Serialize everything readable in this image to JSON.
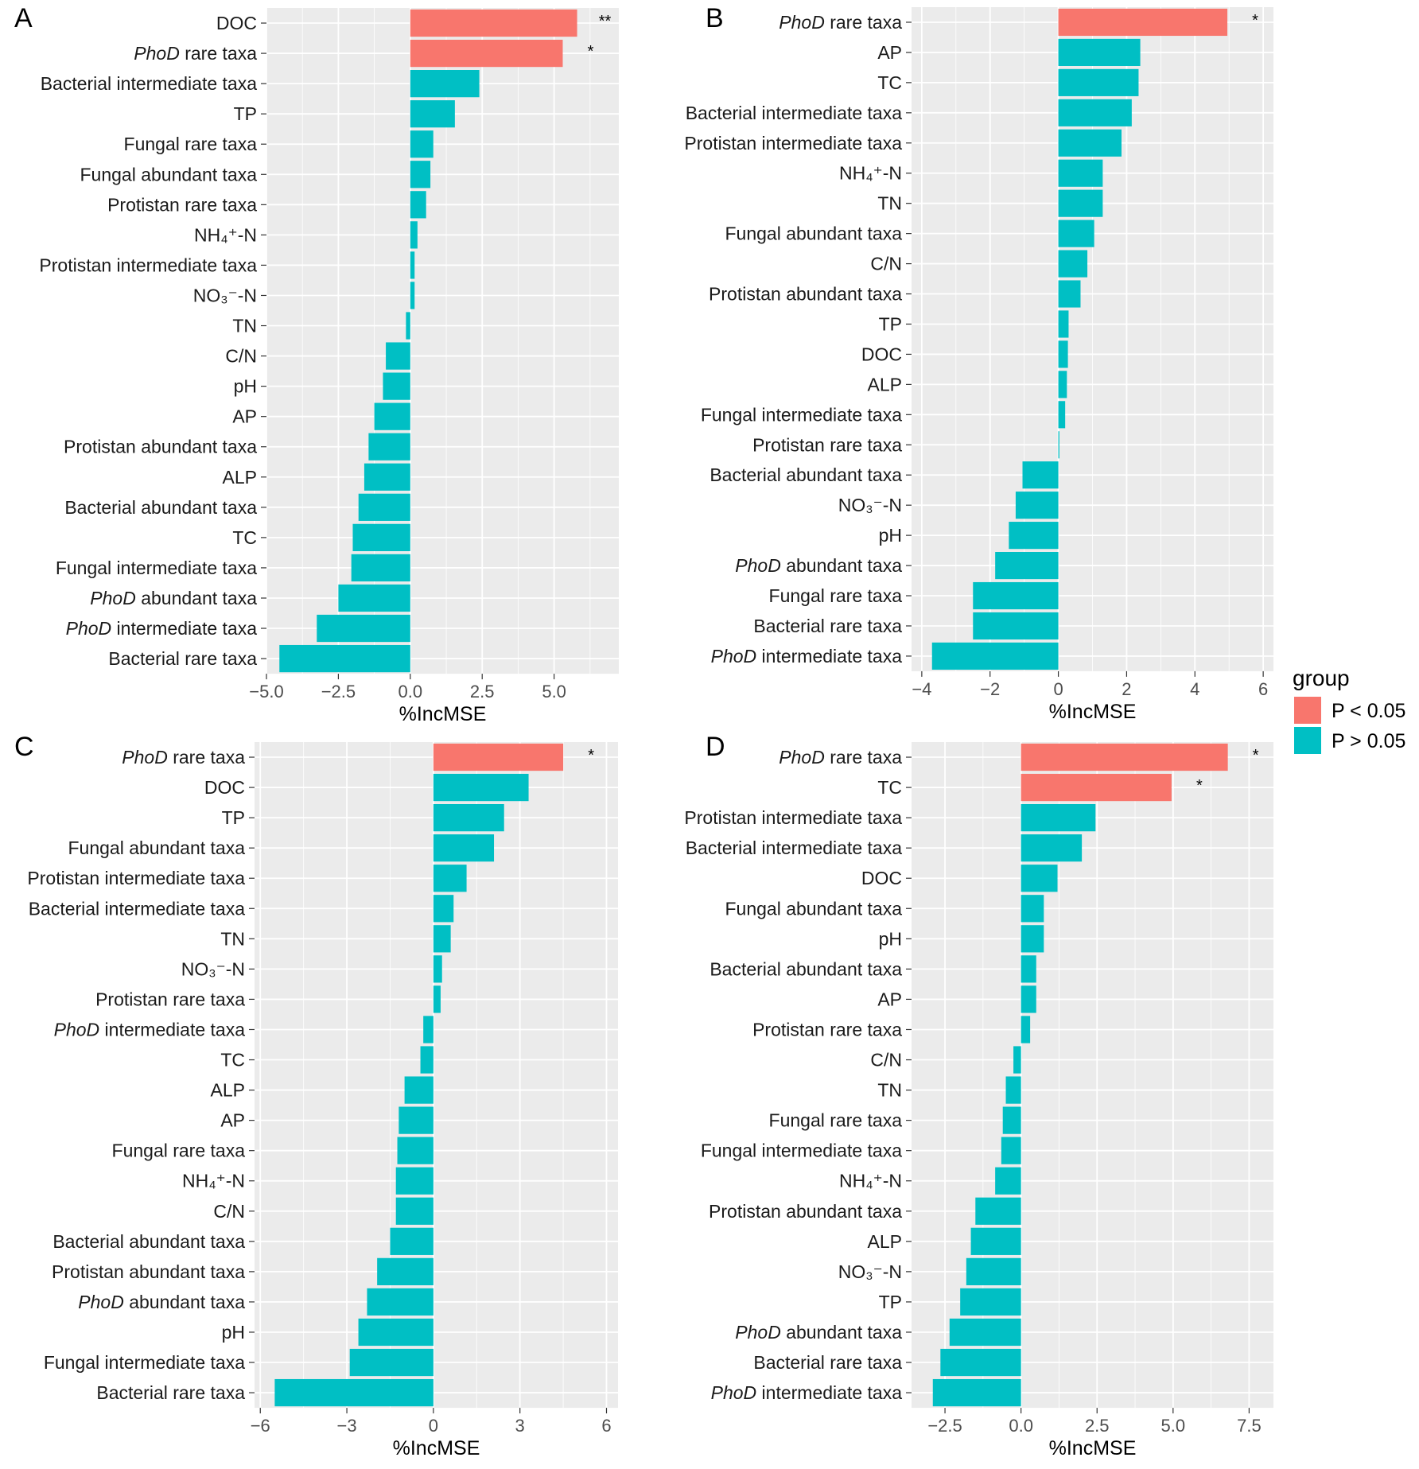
{
  "colors": {
    "significant": "#F8766D",
    "nonsignificant": "#00BFC4",
    "panel_bg": "#EBEBEB",
    "grid": "#FFFFFF"
  },
  "legend": {
    "title": "group",
    "entries": [
      {
        "label": "P < 0.05",
        "color": "#F8766D"
      },
      {
        "label": "P > 0.05",
        "color": "#00BFC4"
      }
    ]
  },
  "chart_data": [
    {
      "panel": "A",
      "type": "bar",
      "orientation": "horizontal",
      "xlabel": "%IncMSE",
      "xlim": [
        -5.0,
        7.25
      ],
      "xticks": [
        -5.0,
        -2.5,
        0.0,
        2.5,
        5.0
      ],
      "xtick_labels": [
        "−5.0",
        "−2.5",
        "0.0",
        "2.5",
        "5.0"
      ],
      "bars": [
        {
          "label": "DOC",
          "value": 5.8,
          "group": "P < 0.05",
          "sig": "**"
        },
        {
          "label": "PhoD rare taxa",
          "italic": "PhoD",
          "value": 5.3,
          "group": "P < 0.05",
          "sig": "*"
        },
        {
          "label": "Bacterial intermediate taxa",
          "value": 2.4,
          "group": "P > 0.05"
        },
        {
          "label": "TP",
          "value": 1.55,
          "group": "P > 0.05"
        },
        {
          "label": "Fungal rare taxa",
          "value": 0.8,
          "group": "P > 0.05"
        },
        {
          "label": "Fungal abundant taxa",
          "value": 0.7,
          "group": "P > 0.05"
        },
        {
          "label": "Protistan rare taxa",
          "value": 0.55,
          "group": "P > 0.05"
        },
        {
          "label": "NH₄⁺-N",
          "value": 0.25,
          "group": "P > 0.05"
        },
        {
          "label": "Protistan intermediate taxa",
          "value": 0.15,
          "group": "P > 0.05"
        },
        {
          "label": "NO₃⁻-N",
          "value": 0.15,
          "group": "P > 0.05"
        },
        {
          "label": "TN",
          "value": -0.15,
          "group": "P > 0.05"
        },
        {
          "label": "C/N",
          "value": -0.85,
          "group": "P > 0.05"
        },
        {
          "label": "pH",
          "value": -0.95,
          "group": "P > 0.05"
        },
        {
          "label": "AP",
          "value": -1.25,
          "group": "P > 0.05"
        },
        {
          "label": "Protistan abundant taxa",
          "value": -1.45,
          "group": "P > 0.05"
        },
        {
          "label": "ALP",
          "value": -1.6,
          "group": "P > 0.05"
        },
        {
          "label": "Bacterial abundant taxa",
          "value": -1.8,
          "group": "P > 0.05"
        },
        {
          "label": "TC",
          "value": -2.0,
          "group": "P > 0.05"
        },
        {
          "label": "Fungal intermediate taxa",
          "value": -2.05,
          "group": "P > 0.05"
        },
        {
          "label": "PhoD abundant taxa",
          "italic": "PhoD",
          "value": -2.5,
          "group": "P > 0.05"
        },
        {
          "label": "PhoD intermediate taxa",
          "italic": "PhoD",
          "value": -3.25,
          "group": "P > 0.05"
        },
        {
          "label": "Bacterial rare taxa",
          "value": -4.55,
          "group": "P > 0.05"
        }
      ]
    },
    {
      "panel": "B",
      "type": "bar",
      "orientation": "horizontal",
      "xlabel": "%IncMSE",
      "xlim": [
        -4.3,
        6.3
      ],
      "xticks": [
        -4,
        -2,
        0,
        2,
        4,
        6
      ],
      "xtick_labels": [
        "−4",
        "−2",
        "0",
        "2",
        "4",
        "6"
      ],
      "bars": [
        {
          "label": "PhoD rare taxa",
          "italic": "PhoD",
          "value": 4.95,
          "group": "P < 0.05",
          "sig": "*"
        },
        {
          "label": "AP",
          "value": 2.4,
          "group": "P > 0.05"
        },
        {
          "label": "TC",
          "value": 2.35,
          "group": "P > 0.05"
        },
        {
          "label": "Bacterial intermediate taxa",
          "value": 2.15,
          "group": "P > 0.05"
        },
        {
          "label": "Protistan intermediate taxa",
          "value": 1.85,
          "group": "P > 0.05"
        },
        {
          "label": "NH₄⁺-N",
          "value": 1.3,
          "group": "P > 0.05"
        },
        {
          "label": "TN",
          "value": 1.3,
          "group": "P > 0.05"
        },
        {
          "label": "Fungal abundant taxa",
          "value": 1.05,
          "group": "P > 0.05"
        },
        {
          "label": "C/N",
          "value": 0.85,
          "group": "P > 0.05"
        },
        {
          "label": "Protistan abundant taxa",
          "value": 0.65,
          "group": "P > 0.05"
        },
        {
          "label": "TP",
          "value": 0.3,
          "group": "P > 0.05"
        },
        {
          "label": "DOC",
          "value": 0.28,
          "group": "P > 0.05"
        },
        {
          "label": "ALP",
          "value": 0.25,
          "group": "P > 0.05"
        },
        {
          "label": "Fungal intermediate taxa",
          "value": 0.2,
          "group": "P > 0.05"
        },
        {
          "label": "Protistan rare taxa",
          "value": 0.03,
          "group": "P > 0.05"
        },
        {
          "label": "Bacterial abundant taxa",
          "value": -1.05,
          "group": "P > 0.05"
        },
        {
          "label": "NO₃⁻-N",
          "value": -1.25,
          "group": "P > 0.05"
        },
        {
          "label": "pH",
          "value": -1.45,
          "group": "P > 0.05"
        },
        {
          "label": "PhoD abundant taxa",
          "italic": "PhoD",
          "value": -1.85,
          "group": "P > 0.05"
        },
        {
          "label": "Fungal rare taxa",
          "value": -2.5,
          "group": "P > 0.05"
        },
        {
          "label": "Bacterial rare taxa",
          "value": -2.5,
          "group": "P > 0.05"
        },
        {
          "label": "PhoD intermediate taxa",
          "italic": "PhoD",
          "value": -3.7,
          "group": "P > 0.05"
        }
      ]
    },
    {
      "panel": "C",
      "type": "bar",
      "orientation": "horizontal",
      "xlabel": "%IncMSE",
      "xlim": [
        -6.2,
        6.4
      ],
      "xticks": [
        -6,
        -3,
        0,
        3,
        6
      ],
      "xtick_labels": [
        "−6",
        "−3",
        "0",
        "3",
        "6"
      ],
      "bars": [
        {
          "label": "PhoD rare taxa",
          "italic": "PhoD",
          "value": 4.5,
          "group": "P < 0.05",
          "sig": "*"
        },
        {
          "label": "DOC",
          "value": 3.3,
          "group": "P > 0.05"
        },
        {
          "label": "TP",
          "value": 2.45,
          "group": "P > 0.05"
        },
        {
          "label": "Fungal abundant taxa",
          "value": 2.1,
          "group": "P > 0.05"
        },
        {
          "label": "Protistan intermediate taxa",
          "value": 1.15,
          "group": "P > 0.05"
        },
        {
          "label": "Bacterial intermediate taxa",
          "value": 0.7,
          "group": "P > 0.05"
        },
        {
          "label": "TN",
          "value": 0.6,
          "group": "P > 0.05"
        },
        {
          "label": "NO₃⁻-N",
          "value": 0.3,
          "group": "P > 0.05"
        },
        {
          "label": "Protistan rare taxa",
          "value": 0.25,
          "group": "P > 0.05"
        },
        {
          "label": "PhoD intermediate taxa",
          "italic": "PhoD",
          "value": -0.35,
          "group": "P > 0.05"
        },
        {
          "label": "TC",
          "value": -0.45,
          "group": "P > 0.05"
        },
        {
          "label": "ALP",
          "value": -1.0,
          "group": "P > 0.05"
        },
        {
          "label": "AP",
          "value": -1.2,
          "group": "P > 0.05"
        },
        {
          "label": "Fungal rare taxa",
          "value": -1.25,
          "group": "P > 0.05"
        },
        {
          "label": "NH₄⁺-N",
          "value": -1.3,
          "group": "P > 0.05"
        },
        {
          "label": "C/N",
          "value": -1.3,
          "group": "P > 0.05"
        },
        {
          "label": "Bacterial abundant taxa",
          "value": -1.5,
          "group": "P > 0.05"
        },
        {
          "label": "Protistan abundant taxa",
          "value": -1.95,
          "group": "P > 0.05"
        },
        {
          "label": "PhoD abundant taxa",
          "italic": "PhoD",
          "value": -2.3,
          "group": "P > 0.05"
        },
        {
          "label": "pH",
          "value": -2.6,
          "group": "P > 0.05"
        },
        {
          "label": "Fungal intermediate taxa",
          "value": -2.9,
          "group": "P > 0.05"
        },
        {
          "label": "Bacterial rare taxa",
          "value": -5.5,
          "group": "P > 0.05"
        }
      ]
    },
    {
      "panel": "D",
      "type": "bar",
      "orientation": "horizontal",
      "xlabel": "%IncMSE",
      "xlim": [
        -3.6,
        8.3
      ],
      "xticks": [
        -2.5,
        0.0,
        2.5,
        5.0,
        7.5
      ],
      "xtick_labels": [
        "−2.5",
        "0.0",
        "2.5",
        "5.0",
        "7.5"
      ],
      "bars": [
        {
          "label": "PhoD rare taxa",
          "italic": "PhoD",
          "value": 6.8,
          "group": "P < 0.05",
          "sig": "*"
        },
        {
          "label": "TC",
          "value": 4.95,
          "group": "P < 0.05",
          "sig": "*"
        },
        {
          "label": "Protistan intermediate taxa",
          "value": 2.45,
          "group": "P > 0.05"
        },
        {
          "label": "Bacterial intermediate taxa",
          "value": 2.0,
          "group": "P > 0.05"
        },
        {
          "label": "DOC",
          "value": 1.2,
          "group": "P > 0.05"
        },
        {
          "label": "Fungal abundant taxa",
          "value": 0.75,
          "group": "P > 0.05"
        },
        {
          "label": "pH",
          "value": 0.75,
          "group": "P > 0.05"
        },
        {
          "label": "Bacterial abundant taxa",
          "value": 0.5,
          "group": "P > 0.05"
        },
        {
          "label": "AP",
          "value": 0.5,
          "group": "P > 0.05"
        },
        {
          "label": "Protistan rare taxa",
          "value": 0.3,
          "group": "P > 0.05"
        },
        {
          "label": "C/N",
          "value": -0.25,
          "group": "P > 0.05"
        },
        {
          "label": "TN",
          "value": -0.5,
          "group": "P > 0.05"
        },
        {
          "label": "Fungal rare taxa",
          "value": -0.6,
          "group": "P > 0.05"
        },
        {
          "label": "Fungal intermediate taxa",
          "value": -0.65,
          "group": "P > 0.05"
        },
        {
          "label": "NH₄⁺-N",
          "value": -0.85,
          "group": "P > 0.05"
        },
        {
          "label": "Protistan abundant taxa",
          "value": -1.5,
          "group": "P > 0.05"
        },
        {
          "label": "ALP",
          "value": -1.65,
          "group": "P > 0.05"
        },
        {
          "label": "NO₃⁻-N",
          "value": -1.8,
          "group": "P > 0.05"
        },
        {
          "label": "TP",
          "value": -2.0,
          "group": "P > 0.05"
        },
        {
          "label": "PhoD abundant taxa",
          "italic": "PhoD",
          "value": -2.35,
          "group": "P > 0.05"
        },
        {
          "label": "Bacterial rare taxa",
          "value": -2.65,
          "group": "P > 0.05"
        },
        {
          "label": "PhoD intermediate taxa",
          "italic": "PhoD",
          "value": -2.9,
          "group": "P > 0.05"
        }
      ]
    }
  ]
}
